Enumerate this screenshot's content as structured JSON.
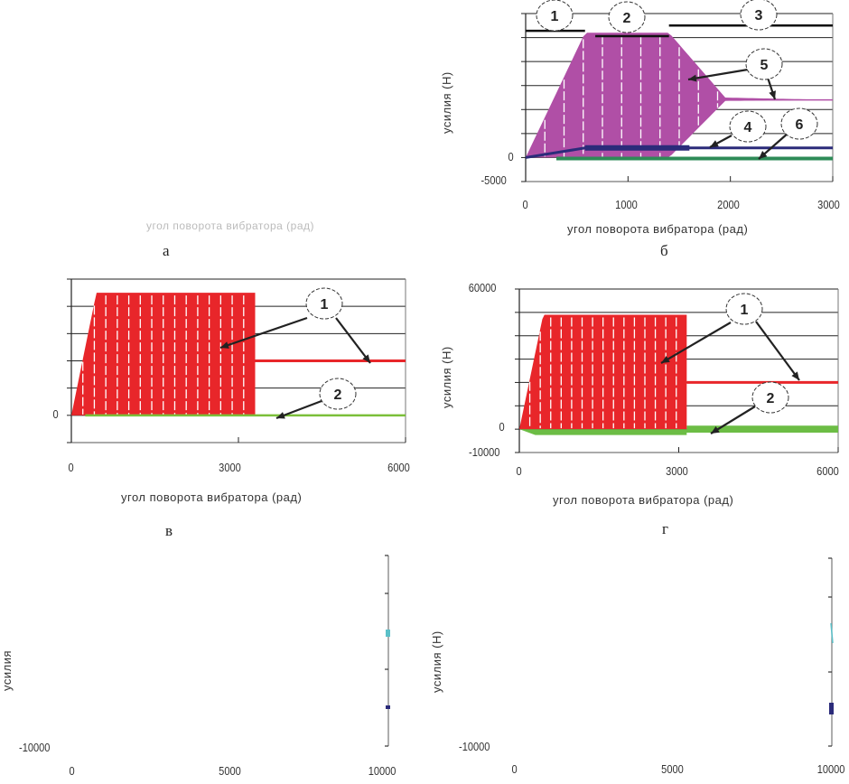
{
  "chart_data": [
    {
      "id": "a",
      "type": "line",
      "caption": "а",
      "xlabel": "угол поворота вибратора (рад)",
      "ylabel": "",
      "visible": false,
      "notes": "panel content not rendered (blank)"
    },
    {
      "id": "b",
      "type": "area",
      "caption": "б",
      "xlabel": "угол поворота вибратора (рад)",
      "ylabel": "усилия (Н)",
      "xlim": [
        0,
        3000
      ],
      "ylim": [
        -5000,
        30000
      ],
      "xticks": [
        "0",
        "1000",
        "2000",
        "3000"
      ],
      "xtick_values": [
        0,
        1000,
        2000,
        3000
      ],
      "ytick_values": [
        -5000,
        0,
        5000,
        10000,
        15000,
        20000,
        25000,
        30000
      ],
      "ytick_labels": [
        "-5000",
        "0",
        "",
        "",
        "",
        "",
        "",
        ""
      ],
      "grid": true,
      "series": [
        {
          "name": "5",
          "kind": "oscillation-envelope",
          "color": "#b04fa6",
          "upper": {
            "x": [
              0,
              580,
              1400,
              1950,
              3000
            ],
            "y": [
              0,
              26000,
              26000,
              12500,
              12000
            ]
          },
          "lower": {
            "x": [
              0,
              580,
              1400,
              1950,
              3000
            ],
            "y": [
              0,
              0,
              0,
              11800,
              12000
            ]
          }
        },
        {
          "name": "4",
          "kind": "line",
          "color": "#2b2b7a",
          "x": [
            0,
            580,
            1400,
            2000,
            3000
          ],
          "y": [
            0,
            2000,
            2000,
            2000,
            2000
          ]
        },
        {
          "name": "6",
          "kind": "line",
          "color": "#2e8b57",
          "x": [
            300,
            3000
          ],
          "y": [
            -200,
            -200
          ]
        }
      ],
      "stage_bars": [
        {
          "label": "1",
          "x": [
            0,
            580
          ],
          "y": 26400
        },
        {
          "label": "2",
          "x": [
            680,
            1400
          ],
          "y": 25300
        },
        {
          "label": "3",
          "x": [
            1400,
            3000
          ],
          "y": 27500
        }
      ],
      "annotations": [
        "1",
        "2",
        "3",
        "4",
        "5",
        "6"
      ]
    },
    {
      "id": "v",
      "type": "area",
      "caption": "в",
      "xlabel": "угол поворота вибратора (рад)",
      "ylabel": "",
      "xlim": [
        0,
        6000
      ],
      "ylim": [
        -10000,
        50000
      ],
      "xticks": [
        "0",
        "3000",
        "6000"
      ],
      "xtick_values": [
        0,
        3000,
        6000
      ],
      "ytick_values": [
        -10000,
        0,
        10000,
        20000,
        30000,
        40000,
        50000
      ],
      "ytick_labels": [
        "",
        "0",
        "",
        "",
        "",
        "",
        ""
      ],
      "grid": true,
      "series": [
        {
          "name": "1",
          "kind": "oscillation-envelope",
          "color": "#e8262a",
          "upper": {
            "x": [
              0,
              450,
              3300
            ],
            "y": [
              0,
              45000,
              45000
            ]
          },
          "lower": {
            "x": [
              0,
              3300
            ],
            "y": [
              0,
              0
            ]
          },
          "tail": {
            "x": [
              3300,
              6000
            ],
            "y": [
              20000,
              20000
            ]
          }
        },
        {
          "name": "2",
          "kind": "line",
          "color": "#7bbf3a",
          "x": [
            250,
            6000
          ],
          "y": [
            0,
            0
          ]
        }
      ],
      "annotations": [
        "1",
        "2"
      ]
    },
    {
      "id": "g",
      "type": "area",
      "caption": "г",
      "xlabel": "угол поворота вибратора (рад)",
      "ylabel": "усилия (Н)",
      "xlim": [
        0,
        6000
      ],
      "ylim": [
        -10000,
        60000
      ],
      "xticks": [
        "0",
        "3000",
        "6000"
      ],
      "xtick_values": [
        0,
        3000,
        6000
      ],
      "ytick_values": [
        -10000,
        0,
        10000,
        20000,
        30000,
        40000,
        50000,
        60000
      ],
      "ytick_labels": [
        "-10000",
        "0",
        "",
        "",
        "",
        "",
        "",
        "60000"
      ],
      "grid": true,
      "series": [
        {
          "name": "1",
          "kind": "oscillation-envelope",
          "color": "#e8262a",
          "upper": {
            "x": [
              0,
              450,
              3150
            ],
            "y": [
              0,
              49000,
              49000
            ]
          },
          "lower": {
            "x": [
              0,
              3150
            ],
            "y": [
              0,
              0
            ]
          },
          "tail": {
            "x": [
              3150,
              6000
            ],
            "y": [
              20000,
              20000
            ]
          }
        },
        {
          "name": "2",
          "kind": "band",
          "color": "#6cbd45",
          "x": [
            0,
            300,
            3150,
            3150,
            6000
          ],
          "y_low": [
            0,
            -2500,
            -2500,
            -1500,
            -1500
          ],
          "y_high": [
            0,
            0,
            0,
            1500,
            1500
          ]
        }
      ],
      "annotations": [
        "1",
        "2"
      ]
    },
    {
      "id": "d",
      "type": "line",
      "caption": "",
      "xlabel": "",
      "ylabel": "усилия",
      "xlim": [
        0,
        10000
      ],
      "xticks": [
        "0",
        "5000",
        "10000"
      ],
      "ytick_labels": [
        "-10000"
      ],
      "notes": "mostly blank panel; only right axis with cyan and navy markers visible"
    },
    {
      "id": "e",
      "type": "line",
      "caption": "",
      "xlabel": "",
      "ylabel": "усилия (Н)",
      "xlim": [
        0,
        10000
      ],
      "xticks": [
        "0",
        "5000",
        "10000"
      ],
      "ytick_labels": [
        "-10000"
      ],
      "notes": "mostly blank panel; only right axis with cyan and navy markers visible"
    }
  ]
}
